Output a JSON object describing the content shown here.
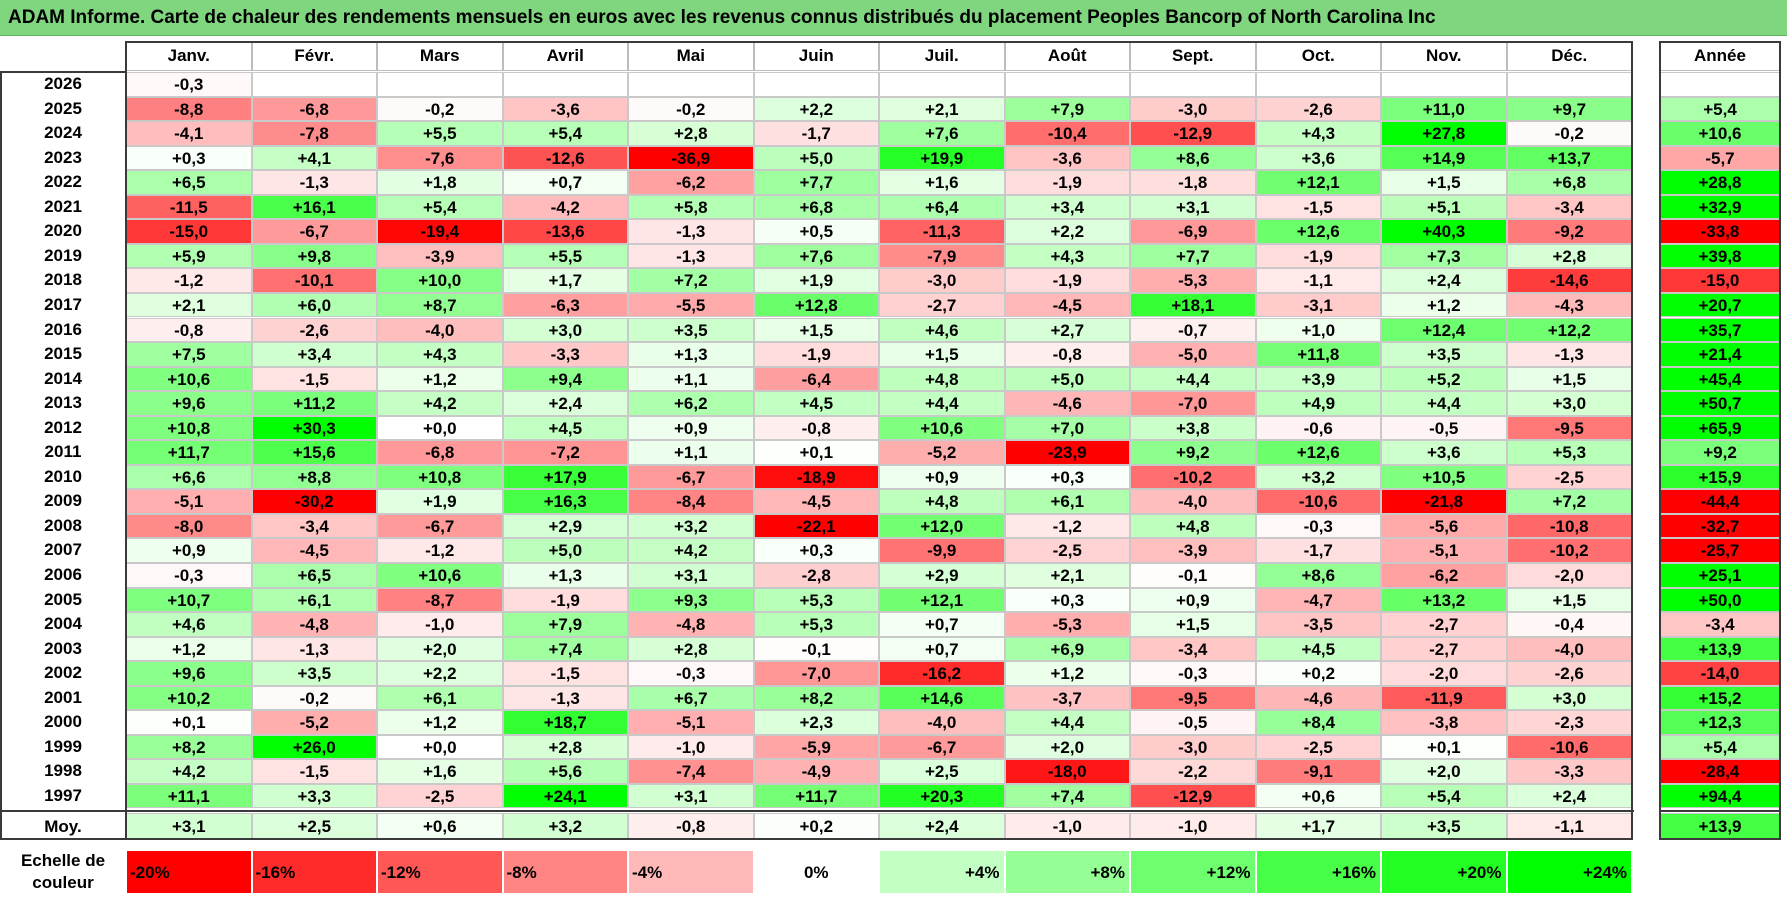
{
  "title": "ADAM Informe. Carte de chaleur des rendements mensuels en euros avec les revenus connus distribués du placement Peoples Bancorp of North Carolina Inc",
  "chart_data": {
    "type": "heatmap",
    "title": "ADAM Informe. Carte de chaleur des rendements mensuels en euros avec les revenus connus distribués du placement Peoples Bancorp of North Carolina Inc",
    "columns": [
      "Janv.",
      "Févr.",
      "Mars",
      "Avril",
      "Mai",
      "Juin",
      "Juil.",
      "Août",
      "Sept.",
      "Oct.",
      "Nov.",
      "Déc."
    ],
    "annual_header": "Année",
    "average_label": "Moy.",
    "scale_label": "Echelle de couleur",
    "colors": {
      "negative": "#ff0000",
      "zero": "#ffffff",
      "positive": "#00ff00"
    },
    "rows": [
      {
        "year": "2026",
        "months": [
          "-0,3",
          "",
          "",
          "",
          "",
          "",
          "",
          "",
          "",
          "",
          "",
          ""
        ],
        "annual": ""
      },
      {
        "year": "2025",
        "months": [
          "-8,8",
          "-6,8",
          "-0,2",
          "-3,6",
          "-0,2",
          "+2,2",
          "+2,1",
          "+7,9",
          "-3,0",
          "-2,6",
          "+11,0",
          "+9,7"
        ],
        "annual": "+5,4"
      },
      {
        "year": "2024",
        "months": [
          "-4,1",
          "-7,8",
          "+5,5",
          "+5,4",
          "+2,8",
          "-1,7",
          "+7,6",
          "-10,4",
          "-12,9",
          "+4,3",
          "+27,8",
          "-0,2"
        ],
        "annual": "+10,6"
      },
      {
        "year": "2023",
        "months": [
          "+0,3",
          "+4,1",
          "-7,6",
          "-12,6",
          "-36,9",
          "+5,0",
          "+19,9",
          "-3,6",
          "+8,6",
          "+3,6",
          "+14,9",
          "+13,7"
        ],
        "annual": "-5,7"
      },
      {
        "year": "2022",
        "months": [
          "+6,5",
          "-1,3",
          "+1,8",
          "+0,7",
          "-6,2",
          "+7,7",
          "+1,6",
          "-1,9",
          "-1,8",
          "+12,1",
          "+1,5",
          "+6,8"
        ],
        "annual": "+28,8"
      },
      {
        "year": "2021",
        "months": [
          "-11,5",
          "+16,1",
          "+5,4",
          "-4,2",
          "+5,8",
          "+6,8",
          "+6,4",
          "+3,4",
          "+3,1",
          "-1,5",
          "+5,1",
          "-3,4"
        ],
        "annual": "+32,9"
      },
      {
        "year": "2020",
        "months": [
          "-15,0",
          "-6,7",
          "-19,4",
          "-13,6",
          "-1,3",
          "+0,5",
          "-11,3",
          "+2,2",
          "-6,9",
          "+12,6",
          "+40,3",
          "-9,2"
        ],
        "annual": "-33,8"
      },
      {
        "year": "2019",
        "months": [
          "+5,9",
          "+9,8",
          "-3,9",
          "+5,5",
          "-1,3",
          "+7,6",
          "-7,9",
          "+4,3",
          "+7,7",
          "-1,9",
          "+7,3",
          "+2,8"
        ],
        "annual": "+39,8"
      },
      {
        "year": "2018",
        "months": [
          "-1,2",
          "-10,1",
          "+10,0",
          "+1,7",
          "+7,2",
          "+1,9",
          "-3,0",
          "-1,9",
          "-5,3",
          "-1,1",
          "+2,4",
          "-14,6"
        ],
        "annual": "-15,0"
      },
      {
        "year": "2017",
        "months": [
          "+2,1",
          "+6,0",
          "+8,7",
          "-6,3",
          "-5,5",
          "+12,8",
          "-2,7",
          "-4,5",
          "+18,1",
          "-3,1",
          "+1,2",
          "-4,3"
        ],
        "annual": "+20,7"
      },
      {
        "year": "2016",
        "months": [
          "-0,8",
          "-2,6",
          "-4,0",
          "+3,0",
          "+3,5",
          "+1,5",
          "+4,6",
          "+2,7",
          "-0,7",
          "+1,0",
          "+12,4",
          "+12,2"
        ],
        "annual": "+35,7"
      },
      {
        "year": "2015",
        "months": [
          "+7,5",
          "+3,4",
          "+4,3",
          "-3,3",
          "+1,3",
          "-1,9",
          "+1,5",
          "-0,8",
          "-5,0",
          "+11,8",
          "+3,5",
          "-1,3"
        ],
        "annual": "+21,4"
      },
      {
        "year": "2014",
        "months": [
          "+10,6",
          "-1,5",
          "+1,2",
          "+9,4",
          "+1,1",
          "-6,4",
          "+4,8",
          "+5,0",
          "+4,4",
          "+3,9",
          "+5,2",
          "+1,5"
        ],
        "annual": "+45,4"
      },
      {
        "year": "2013",
        "months": [
          "+9,6",
          "+11,2",
          "+4,2",
          "+2,4",
          "+6,2",
          "+4,5",
          "+4,4",
          "-4,6",
          "-7,0",
          "+4,9",
          "+4,4",
          "+3,0"
        ],
        "annual": "+50,7"
      },
      {
        "year": "2012",
        "months": [
          "+10,8",
          "+30,3",
          "+0,0",
          "+4,5",
          "+0,9",
          "-0,8",
          "+10,6",
          "+7,0",
          "+3,8",
          "-0,6",
          "-0,5",
          "-9,5"
        ],
        "annual": "+65,9"
      },
      {
        "year": "2011",
        "months": [
          "+11,7",
          "+15,6",
          "-6,8",
          "-7,2",
          "+1,1",
          "+0,1",
          "-5,2",
          "-23,9",
          "+9,2",
          "+12,6",
          "+3,6",
          "+5,3"
        ],
        "annual": "+9,2"
      },
      {
        "year": "2010",
        "months": [
          "+6,6",
          "+8,8",
          "+10,8",
          "+17,9",
          "-6,7",
          "-18,9",
          "+0,9",
          "+0,3",
          "-10,2",
          "+3,2",
          "+10,5",
          "-2,5"
        ],
        "annual": "+15,9"
      },
      {
        "year": "2009",
        "months": [
          "-5,1",
          "-30,2",
          "+1,9",
          "+16,3",
          "-8,4",
          "-4,5",
          "+4,8",
          "+6,1",
          "-4,0",
          "-10,6",
          "-21,8",
          "+7,2"
        ],
        "annual": "-44,4"
      },
      {
        "year": "2008",
        "months": [
          "-8,0",
          "-3,4",
          "-6,7",
          "+2,9",
          "+3,2",
          "-22,1",
          "+12,0",
          "-1,2",
          "+4,8",
          "-0,3",
          "-5,6",
          "-10,8"
        ],
        "annual": "-32,7"
      },
      {
        "year": "2007",
        "months": [
          "+0,9",
          "-4,5",
          "-1,2",
          "+5,0",
          "+4,2",
          "+0,3",
          "-9,9",
          "-2,5",
          "-3,9",
          "-1,7",
          "-5,1",
          "-10,2"
        ],
        "annual": "-25,7"
      },
      {
        "year": "2006",
        "months": [
          "-0,3",
          "+6,5",
          "+10,6",
          "+1,3",
          "+3,1",
          "-2,8",
          "+2,9",
          "+2,1",
          "-0,1",
          "+8,6",
          "-6,2",
          "-2,0"
        ],
        "annual": "+25,1"
      },
      {
        "year": "2005",
        "months": [
          "+10,7",
          "+6,1",
          "-8,7",
          "-1,9",
          "+9,3",
          "+5,3",
          "+12,1",
          "+0,3",
          "+0,9",
          "-4,7",
          "+13,2",
          "+1,5"
        ],
        "annual": "+50,0"
      },
      {
        "year": "2004",
        "months": [
          "+4,6",
          "-4,8",
          "-1,0",
          "+7,9",
          "-4,8",
          "+5,3",
          "+0,7",
          "-5,3",
          "+1,5",
          "-3,5",
          "-2,7",
          "-0,4"
        ],
        "annual": "-3,4"
      },
      {
        "year": "2003",
        "months": [
          "+1,2",
          "-1,3",
          "+2,0",
          "+7,4",
          "+2,8",
          "-0,1",
          "+0,7",
          "+6,9",
          "-3,4",
          "+4,5",
          "-2,7",
          "-4,0"
        ],
        "annual": "+13,9"
      },
      {
        "year": "2002",
        "months": [
          "+9,6",
          "+3,5",
          "+2,2",
          "-1,5",
          "-0,3",
          "-7,0",
          "-16,2",
          "+1,2",
          "-0,3",
          "+0,2",
          "-2,0",
          "-2,6"
        ],
        "annual": "-14,0"
      },
      {
        "year": "2001",
        "months": [
          "+10,2",
          "-0,2",
          "+6,1",
          "-1,3",
          "+6,7",
          "+8,2",
          "+14,6",
          "-3,7",
          "-9,5",
          "-4,6",
          "-11,9",
          "+3,0"
        ],
        "annual": "+15,2"
      },
      {
        "year": "2000",
        "months": [
          "+0,1",
          "-5,2",
          "+1,2",
          "+18,7",
          "-5,1",
          "+2,3",
          "-4,0",
          "+4,4",
          "-0,5",
          "+8,4",
          "-3,8",
          "-2,3"
        ],
        "annual": "+12,3"
      },
      {
        "year": "1999",
        "months": [
          "+8,2",
          "+26,0",
          "+0,0",
          "+2,8",
          "-1,0",
          "-5,9",
          "-6,7",
          "+2,0",
          "-3,0",
          "-2,5",
          "+0,1",
          "-10,6"
        ],
        "annual": "+5,4"
      },
      {
        "year": "1998",
        "months": [
          "+4,2",
          "-1,5",
          "+1,6",
          "+5,6",
          "-7,4",
          "-4,9",
          "+2,5",
          "-18,0",
          "-2,2",
          "-9,1",
          "+2,0",
          "-3,3"
        ],
        "annual": "-28,4"
      },
      {
        "year": "1997",
        "months": [
          "+11,1",
          "+3,3",
          "-2,5",
          "+24,1",
          "+3,1",
          "+11,7",
          "+20,3",
          "+7,4",
          "-12,9",
          "+0,6",
          "+5,4",
          "+2,4"
        ],
        "annual": "+94,4"
      }
    ],
    "average": {
      "months": [
        "+3,1",
        "+2,5",
        "+0,6",
        "+3,2",
        "-0,8",
        "+0,2",
        "+2,4",
        "-1,0",
        "-1,0",
        "+1,7",
        "+3,5",
        "-1,1"
      ],
      "annual": "+13,9"
    },
    "scale": [
      "-20%",
      "-16%",
      "-12%",
      "-8%",
      "-4%",
      "0%",
      "+4%",
      "+8%",
      "+12%",
      "+16%",
      "+20%",
      "+24%"
    ]
  }
}
